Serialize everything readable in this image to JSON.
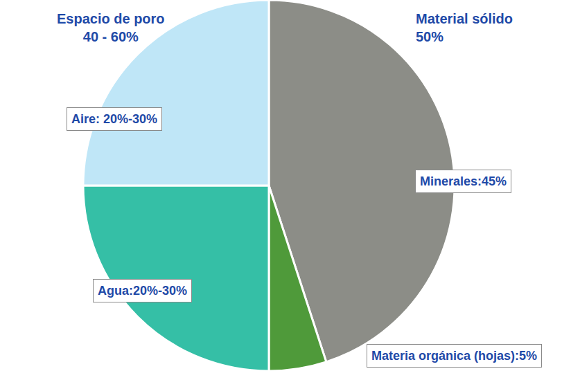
{
  "chart_data": {
    "type": "pie",
    "categories": [
      "Minerales:45%",
      "Materia orgánica (hojas):5%",
      "Agua:20%-30%",
      "Aire: 20%-30%"
    ],
    "values": [
      45,
      5,
      25,
      25
    ],
    "colors": [
      "#8c8d87",
      "#4f9a3a",
      "#35bfa6",
      "#bfe6f7"
    ],
    "annotations": [
      {
        "lines": [
          "Espacio de poro",
          "40 - 60%"
        ]
      },
      {
        "lines": [
          "Material sólido",
          "50%"
        ]
      }
    ]
  }
}
